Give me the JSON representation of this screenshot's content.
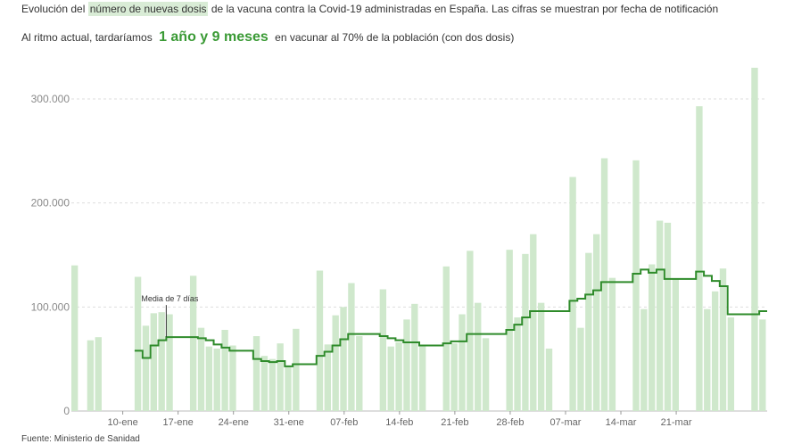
{
  "header": {
    "line1_pre": "Evolución del",
    "line1_highlight": "número de nuevas dosis",
    "line1_post": "de la vacuna contra la Covid-19 administradas en España. Las cifras se muestran por fecha de notificación",
    "line2_pre": "Al ritmo actual, tardaríamos",
    "line2_big": "1 año y 9 meses",
    "line2_post": "en vacunar al 70% de la población (con dos dosis)"
  },
  "annotation": "Media de 7 días",
  "source": "Fuente: Ministerio de Sanidad",
  "colors": {
    "bar": "#cfe8cc",
    "line": "#2e8b2a",
    "accent": "#3a9a35",
    "grid": "#dddddd"
  },
  "chart_data": {
    "type": "bar",
    "title": "",
    "xlabel": "",
    "ylabel": "",
    "ylim": [
      0,
      330000
    ],
    "y_ticks": [
      0,
      100000,
      200000,
      300000
    ],
    "y_tick_labels": [
      "0",
      "100.000",
      "200.000",
      "300.000"
    ],
    "x_start_date": "2021-01-04",
    "x_tick_labels": [
      "10-ene",
      "17-ene",
      "24-ene",
      "31-ene",
      "07-feb",
      "14-feb",
      "21-feb",
      "28-feb",
      "07-mar",
      "14-mar",
      "21-mar"
    ],
    "x_tick_days": [
      6,
      13,
      20,
      27,
      34,
      41,
      48,
      55,
      62,
      69,
      76
    ],
    "series": [
      {
        "name": "Nuevas dosis",
        "values": [
          140000,
          0,
          68000,
          71000,
          0,
          0,
          0,
          0,
          129000,
          82000,
          94000,
          95000,
          93000,
          0,
          0,
          130000,
          80000,
          62000,
          60000,
          78000,
          63000,
          0,
          0,
          72000,
          53000,
          50000,
          65000,
          43000,
          79000,
          0,
          0,
          135000,
          64000,
          92000,
          100000,
          123000,
          72000,
          0,
          0,
          117000,
          62000,
          66000,
          88000,
          103000,
          63000,
          0,
          0,
          139000,
          65000,
          93000,
          154000,
          104000,
          70000,
          0,
          0,
          155000,
          90000,
          151000,
          170000,
          104000,
          60000,
          0,
          0,
          225000,
          80000,
          152000,
          170000,
          243000,
          128000,
          0,
          0,
          241000,
          98000,
          141000,
          183000,
          181000,
          127000,
          0,
          0,
          293000,
          98000,
          115000,
          137000,
          90000,
          0,
          0,
          330000,
          88000
        ]
      },
      {
        "name": "Media de 7 días",
        "values": [
          null,
          null,
          null,
          null,
          null,
          null,
          null,
          null,
          58000,
          51000,
          63000,
          68000,
          71000,
          71000,
          71000,
          71000,
          70000,
          68000,
          64000,
          61000,
          58000,
          58000,
          58000,
          50000,
          48000,
          47000,
          48000,
          43000,
          45000,
          45000,
          45000,
          53000,
          57000,
          63000,
          69000,
          74000,
          74000,
          74000,
          74000,
          72000,
          70000,
          68000,
          66000,
          66000,
          63000,
          63000,
          63000,
          65000,
          67000,
          67000,
          74000,
          74000,
          74000,
          74000,
          74000,
          78000,
          83000,
          90000,
          96000,
          96000,
          96000,
          96000,
          96000,
          106000,
          108000,
          112000,
          116000,
          124000,
          124000,
          124000,
          124000,
          132000,
          136000,
          133000,
          136000,
          127000,
          127000,
          127000,
          127000,
          134000,
          130000,
          125000,
          120000,
          93000,
          93000,
          93000,
          93000,
          96000
        ]
      }
    ],
    "grid": true,
    "legend": "none"
  }
}
